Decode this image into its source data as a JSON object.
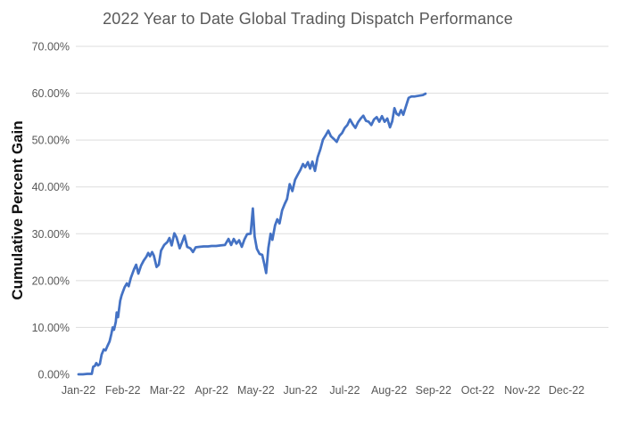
{
  "chart": {
    "title": "2022 Year to Date Global Trading Dispatch Performance",
    "y_axis_title": "Cumulative Percent Gain"
  },
  "colors": {
    "line": "#4472C4",
    "gridline": "#DDDDDD",
    "tick_label": "#595959",
    "title": "#595959",
    "axis_title": "#111111",
    "background": "#FFFFFF"
  },
  "chart_data": {
    "type": "line",
    "title": "2022 Year to Date Global Trading Dispatch Performance",
    "xlabel": "",
    "ylabel": "Cumulative Percent Gain",
    "x_unit": "months since Jan-22 (0 = Jan 1 2022, daily cumulative gain)",
    "x_tick_labels": [
      "Jan-22",
      "Feb-22",
      "Mar-22",
      "Apr-22",
      "May-22",
      "Jun-22",
      "Jul-22",
      "Aug-22",
      "Sep-22",
      "Oct-22",
      "Nov-22",
      "Dec-22"
    ],
    "y_tick_labels": [
      "0.00%",
      "10.00%",
      "20.00%",
      "30.00%",
      "40.00%",
      "50.00%",
      "60.00%",
      "70.00%"
    ],
    "ylim": [
      0,
      70
    ],
    "xlim_months": [
      0,
      12
    ],
    "grid": "horizontal",
    "legend": "none",
    "series": [
      {
        "color": "#4472C4",
        "x": [
          0.0,
          0.1,
          0.2,
          0.3,
          0.33,
          0.37,
          0.4,
          0.44,
          0.48,
          0.52,
          0.57,
          0.61,
          0.65,
          0.7,
          0.74,
          0.77,
          0.8,
          0.84,
          0.86,
          0.89,
          0.94,
          0.97,
          1.0,
          1.04,
          1.09,
          1.13,
          1.18,
          1.25,
          1.3,
          1.35,
          1.41,
          1.47,
          1.53,
          1.57,
          1.61,
          1.66,
          1.7,
          1.76,
          1.81,
          1.86,
          1.93,
          2.0,
          2.05,
          2.1,
          2.16,
          2.21,
          2.28,
          2.33,
          2.39,
          2.45,
          2.52,
          2.58,
          2.64,
          2.72,
          2.82,
          2.92,
          3.0,
          3.1,
          3.2,
          3.3,
          3.38,
          3.44,
          3.5,
          3.56,
          3.62,
          3.68,
          3.74,
          3.8,
          3.88,
          3.93,
          3.97,
          4.02,
          4.08,
          4.14,
          4.19,
          4.23,
          4.28,
          4.33,
          4.37,
          4.43,
          4.48,
          4.53,
          4.59,
          4.65,
          4.7,
          4.76,
          4.82,
          4.88,
          4.94,
          5.0,
          5.06,
          5.11,
          5.17,
          5.22,
          5.27,
          5.33,
          5.39,
          5.45,
          5.51,
          5.57,
          5.63,
          5.69,
          5.76,
          5.82,
          5.88,
          5.94,
          6.0,
          6.06,
          6.12,
          6.18,
          6.24,
          6.3,
          6.36,
          6.42,
          6.48,
          6.54,
          6.6,
          6.66,
          6.72,
          6.78,
          6.84,
          6.9,
          6.96,
          7.02,
          7.07,
          7.12,
          7.17,
          7.22,
          7.27,
          7.32,
          7.38,
          7.44,
          7.5,
          7.57,
          7.64,
          7.7,
          7.76,
          7.82
        ],
        "y": [
          0.0,
          0.0,
          0.1,
          0.1,
          1.6,
          1.8,
          2.4,
          1.9,
          2.2,
          4.2,
          5.3,
          5.1,
          6.0,
          7.0,
          8.6,
          10.0,
          9.5,
          11.2,
          13.2,
          12.2,
          15.7,
          16.8,
          17.6,
          18.6,
          19.4,
          18.8,
          20.6,
          22.4,
          23.4,
          21.5,
          23.2,
          24.3,
          25.1,
          25.9,
          25.2,
          26.1,
          25.3,
          22.9,
          23.4,
          26.4,
          27.6,
          28.2,
          29.1,
          27.5,
          30.1,
          29.2,
          26.9,
          28.1,
          29.6,
          27.2,
          26.9,
          26.1,
          27.1,
          27.2,
          27.3,
          27.3,
          27.4,
          27.4,
          27.5,
          27.6,
          28.9,
          27.6,
          28.9,
          27.9,
          28.6,
          27.2,
          28.8,
          29.9,
          30.0,
          35.4,
          29.4,
          26.8,
          25.7,
          25.5,
          23.4,
          21.6,
          27.0,
          30.0,
          28.7,
          31.8,
          33.1,
          32.2,
          35.0,
          36.4,
          37.4,
          40.6,
          39.1,
          41.5,
          42.6,
          43.6,
          44.9,
          44.2,
          45.3,
          43.9,
          45.4,
          43.4,
          46.3,
          48.0,
          50.1,
          51.0,
          52.0,
          50.8,
          50.2,
          49.6,
          50.9,
          51.5,
          52.6,
          53.2,
          54.4,
          53.4,
          52.6,
          53.8,
          54.6,
          55.2,
          54.1,
          53.9,
          53.2,
          54.4,
          54.9,
          53.9,
          55.1,
          53.9,
          54.6,
          52.7,
          54.0,
          56.8,
          55.6,
          55.3,
          56.4,
          55.4,
          57.2,
          59.0,
          59.3,
          59.3,
          59.4,
          59.5,
          59.6,
          59.9
        ]
      }
    ]
  }
}
